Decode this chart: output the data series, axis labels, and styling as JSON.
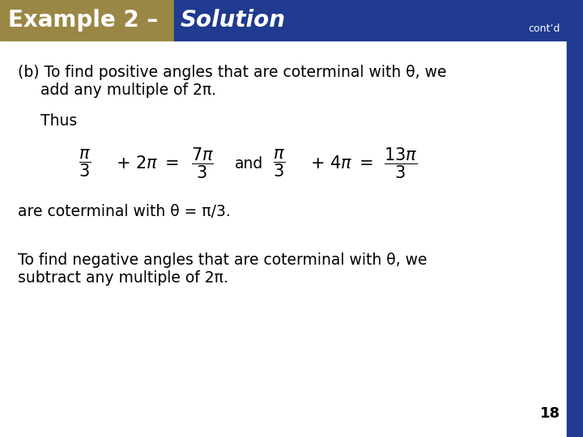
{
  "bg_color": "#ffffff",
  "header_gold_color": "#9B8745",
  "header_blue_color": "#1F3A8F",
  "header_text_example": "Example 2 – ",
  "header_text_solution": "Solution",
  "header_contd": "cont’d",
  "right_bar_color": "#1F3A8F",
  "slide_number": "18",
  "text_color": "#000000",
  "font_size_body": 13.5,
  "font_size_header": 20,
  "font_size_eq": 15
}
